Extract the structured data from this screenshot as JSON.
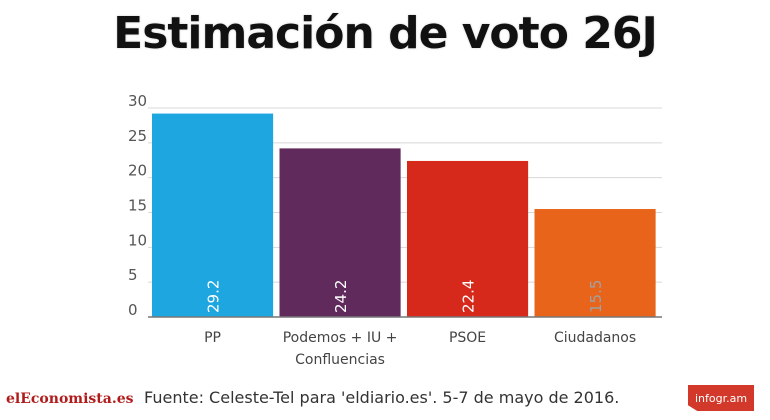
{
  "page": {
    "title": "Estimación de voto 26J",
    "source": "Fuente:  Celeste-Tel para 'eldiario.es'. 5-7 de mayo de 2016.",
    "brand": "elEconomista.es",
    "badge": "infogr.am"
  },
  "chart_data": {
    "type": "bar",
    "categories": [
      "PP",
      "Podemos + IU +\nConfluencias",
      "PSOE",
      "Ciudadanos"
    ],
    "values": [
      29.2,
      24.2,
      22.4,
      15.5
    ],
    "value_labels": [
      "29.2",
      "24.2",
      "22.4",
      "15.5"
    ],
    "colors": [
      "#1ea6e0",
      "#612a5c",
      "#d6281b",
      "#e8641a"
    ],
    "value_label_colors": [
      "#ffffff",
      "#ffffff",
      "#ffffff",
      "#a0a0a0"
    ],
    "ylim": [
      0,
      30
    ],
    "yticks": [
      0,
      5,
      10,
      15,
      20,
      25,
      30
    ],
    "grid": true,
    "title": "Estimación de voto 26J",
    "xlabel": "",
    "ylabel": ""
  }
}
